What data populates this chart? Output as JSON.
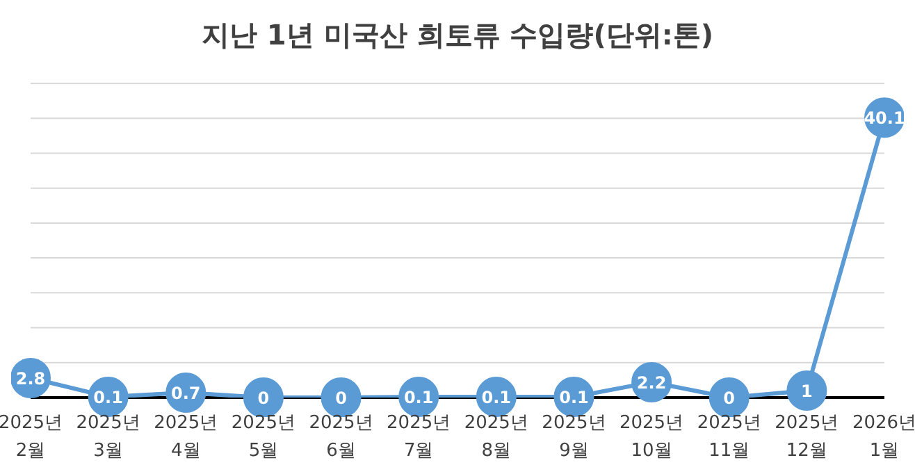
{
  "chart_data": {
    "type": "line",
    "title": "지난 1년 미국산 희토류 수입량(단위:톤)",
    "categories": [
      "2025년 2월",
      "2025년 3월",
      "2025년 4월",
      "2025년 5월",
      "2025년 6월",
      "2025년 7월",
      "2025년 8월",
      "2025년 9월",
      "2025년 10월",
      "2025년 11월",
      "2025년 12월",
      "2026년 1월"
    ],
    "series": [
      {
        "color": "#5b9bd5",
        "values": [
          2.8,
          0.1,
          0.7,
          0,
          0,
          0.1,
          0.1,
          0.1,
          2.2,
          0,
          1,
          40.1
        ]
      }
    ],
    "ylim": [
      0,
      45
    ],
    "grid": "y",
    "tick_labels": "x",
    "marker": "circle",
    "line_style": "solid",
    "data_labels": true
  }
}
